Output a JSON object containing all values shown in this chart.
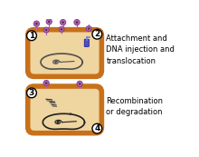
{
  "fig_w": 2.2,
  "fig_h": 1.73,
  "dpi": 100,
  "bg_color": "#ffffff",
  "cell_outer_color": "#c8701a",
  "cell_inner_color": "#efd5a0",
  "chromosome_color": "#505050",
  "gta_head_color": "#c060c0",
  "gta_head_dark": "#804080",
  "gta_stick_color": "#c060c0",
  "injected_dna_color": "#5050c0",
  "circle_bg": "#ffffff",
  "circle_edge": "#000000",
  "text_color": "#000000",
  "label1": "Attachment and\nDNA injection and\ntranslocation",
  "label2": "Recombination\nor degradation"
}
